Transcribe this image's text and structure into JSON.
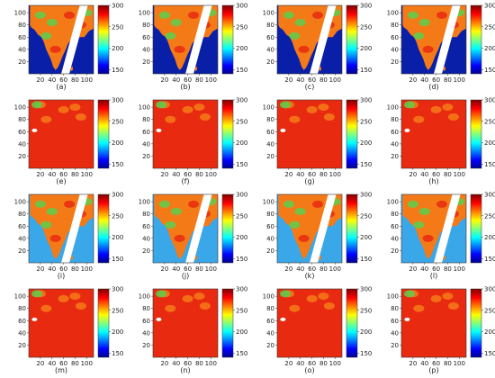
{
  "chart_data": [
    {
      "type": "heatmap",
      "panel": "(a)",
      "style": "swath",
      "xticks": [
        20,
        40,
        60,
        80,
        100
      ],
      "yticks": [
        20,
        40,
        60,
        80,
        100
      ],
      "xlim": [
        0,
        112
      ],
      "ylim": [
        0,
        112
      ],
      "colorbar": {
        "ticks": [
          150,
          200,
          250,
          300
        ],
        "range": [
          140,
          300
        ]
      }
    },
    {
      "type": "heatmap",
      "panel": "(b)",
      "style": "swath",
      "xticks": [
        20,
        40,
        60,
        80,
        100
      ],
      "yticks": [
        20,
        40,
        60,
        80,
        100
      ],
      "xlim": [
        0,
        112
      ],
      "ylim": [
        0,
        112
      ],
      "colorbar": {
        "ticks": [
          150,
          200,
          250,
          300
        ],
        "range": [
          140,
          300
        ]
      }
    },
    {
      "type": "heatmap",
      "panel": "(c)",
      "style": "swath",
      "xticks": [
        20,
        40,
        60,
        80,
        100
      ],
      "yticks": [
        20,
        40,
        60,
        80,
        100
      ],
      "xlim": [
        0,
        112
      ],
      "ylim": [
        0,
        112
      ],
      "colorbar": {
        "ticks": [
          150,
          200,
          250,
          300
        ],
        "range": [
          140,
          300
        ]
      }
    },
    {
      "type": "heatmap",
      "panel": "(d)",
      "style": "swath",
      "xticks": [
        20,
        40,
        60,
        80,
        100
      ],
      "yticks": [
        20,
        40,
        60,
        80,
        100
      ],
      "xlim": [
        0,
        112
      ],
      "ylim": [
        0,
        112
      ],
      "colorbar": {
        "ticks": [
          150,
          200,
          250,
          300
        ],
        "range": [
          140,
          300
        ]
      }
    },
    {
      "type": "heatmap",
      "panel": "(e)",
      "style": "full",
      "xticks": [
        20,
        40,
        60,
        80,
        100
      ],
      "yticks": [
        20,
        40,
        60,
        80,
        100
      ],
      "xlim": [
        0,
        112
      ],
      "ylim": [
        0,
        112
      ],
      "colorbar": {
        "ticks": [
          150,
          200,
          250,
          300
        ],
        "range": [
          140,
          300
        ]
      }
    },
    {
      "type": "heatmap",
      "panel": "(f)",
      "style": "full",
      "xticks": [
        20,
        40,
        60,
        80,
        100
      ],
      "yticks": [
        20,
        40,
        60,
        80,
        100
      ],
      "xlim": [
        0,
        112
      ],
      "ylim": [
        0,
        112
      ],
      "colorbar": {
        "ticks": [
          150,
          200,
          250,
          300
        ],
        "range": [
          140,
          300
        ]
      }
    },
    {
      "type": "heatmap",
      "panel": "(g)",
      "style": "full",
      "xticks": [
        20,
        40,
        60,
        80,
        100
      ],
      "yticks": [
        20,
        40,
        60,
        80,
        100
      ],
      "xlim": [
        0,
        112
      ],
      "ylim": [
        0,
        112
      ],
      "colorbar": {
        "ticks": [
          150,
          200,
          250,
          300
        ],
        "range": [
          140,
          300
        ]
      }
    },
    {
      "type": "heatmap",
      "panel": "(h)",
      "style": "full",
      "xticks": [
        20,
        40,
        60,
        80,
        100
      ],
      "yticks": [
        20,
        40,
        60,
        80,
        100
      ],
      "xlim": [
        0,
        112
      ],
      "ylim": [
        0,
        112
      ],
      "colorbar": {
        "ticks": [
          150,
          200,
          250,
          300
        ],
        "range": [
          140,
          300
        ]
      }
    },
    {
      "type": "heatmap",
      "panel": "(i)",
      "style": "swath-light",
      "xticks": [
        20,
        40,
        60,
        80,
        100
      ],
      "yticks": [
        20,
        40,
        60,
        80,
        100
      ],
      "xlim": [
        0,
        112
      ],
      "ylim": [
        0,
        112
      ],
      "colorbar": {
        "ticks": [
          150,
          200,
          250,
          300
        ],
        "range": [
          140,
          300
        ]
      }
    },
    {
      "type": "heatmap",
      "panel": "(j)",
      "style": "swath-light",
      "xticks": [
        20,
        40,
        60,
        80,
        100
      ],
      "yticks": [
        20,
        40,
        60,
        80,
        100
      ],
      "xlim": [
        0,
        112
      ],
      "ylim": [
        0,
        112
      ],
      "colorbar": {
        "ticks": [
          150,
          200,
          250,
          300
        ],
        "range": [
          140,
          300
        ]
      }
    },
    {
      "type": "heatmap",
      "panel": "(k)",
      "style": "swath-light",
      "xticks": [
        20,
        40,
        60,
        80,
        100
      ],
      "yticks": [
        20,
        40,
        60,
        80,
        100
      ],
      "xlim": [
        0,
        112
      ],
      "ylim": [
        0,
        112
      ],
      "colorbar": {
        "ticks": [
          150,
          200,
          250,
          300
        ],
        "range": [
          140,
          300
        ]
      }
    },
    {
      "type": "heatmap",
      "panel": "(l)",
      "style": "swath-light",
      "xticks": [
        20,
        40,
        60,
        80,
        100
      ],
      "yticks": [
        20,
        40,
        60,
        80,
        100
      ],
      "xlim": [
        0,
        112
      ],
      "ylim": [
        0,
        112
      ],
      "colorbar": {
        "ticks": [
          150,
          200,
          250,
          300
        ],
        "range": [
          140,
          300
        ]
      }
    },
    {
      "type": "heatmap",
      "panel": "(m)",
      "style": "full",
      "xticks": [
        20,
        40,
        60,
        80,
        100
      ],
      "yticks": [
        20,
        40,
        60,
        80,
        100
      ],
      "xlim": [
        0,
        112
      ],
      "ylim": [
        0,
        112
      ],
      "colorbar": {
        "ticks": [
          150,
          200,
          250,
          300
        ],
        "range": [
          140,
          300
        ]
      }
    },
    {
      "type": "heatmap",
      "panel": "(n)",
      "style": "full",
      "xticks": [
        20,
        40,
        60,
        80,
        100
      ],
      "yticks": [
        20,
        40,
        60,
        80,
        100
      ],
      "xlim": [
        0,
        112
      ],
      "ylim": [
        0,
        112
      ],
      "colorbar": {
        "ticks": [
          150,
          200,
          250,
          300
        ],
        "range": [
          140,
          300
        ]
      }
    },
    {
      "type": "heatmap",
      "panel": "(o)",
      "style": "full",
      "xticks": [
        20,
        40,
        60,
        80,
        100
      ],
      "yticks": [
        20,
        40,
        60,
        80,
        100
      ],
      "xlim": [
        0,
        112
      ],
      "ylim": [
        0,
        112
      ],
      "colorbar": {
        "ticks": [
          150,
          200,
          250,
          300
        ],
        "range": [
          140,
          300
        ]
      }
    },
    {
      "type": "heatmap",
      "panel": "(p)",
      "style": "full",
      "xticks": [
        20,
        40,
        60,
        80,
        100
      ],
      "yticks": [
        20,
        40,
        60,
        80,
        100
      ],
      "xlim": [
        0,
        112
      ],
      "ylim": [
        0,
        112
      ],
      "colorbar": {
        "ticks": [
          150,
          200,
          250,
          300
        ],
        "range": [
          140,
          300
        ]
      }
    }
  ],
  "colors": {
    "colormap": [
      "#00008f",
      "#0000ff",
      "#00ffff",
      "#ffff00",
      "#ff0000",
      "#800000"
    ],
    "ocean_dark": "#0a1fa8",
    "ocean_light": "#3aa7e8",
    "land_red": "#e82a10",
    "land_orange": "#f47a18",
    "green_patch": "#5ad04e",
    "gap": "#ffffff"
  }
}
